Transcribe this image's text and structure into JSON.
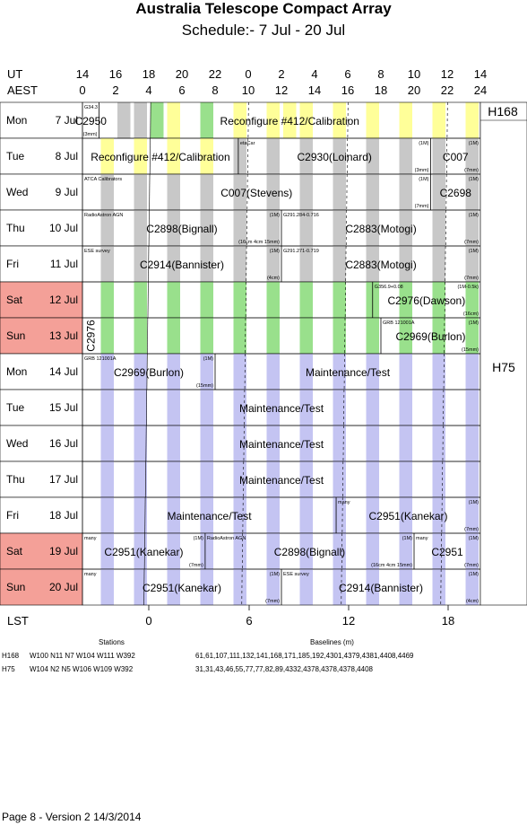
{
  "title": "Australia Telescope Compact Array",
  "subtitle": "Schedule:- 7  Jul - 20 Jul",
  "axis": {
    "ut_label": "UT",
    "aest_label": "AEST",
    "lst_label": "LST",
    "ut_ticks": [
      "14",
      "16",
      "18",
      "20",
      "22",
      "0",
      "2",
      "4",
      "6",
      "8",
      "10",
      "12",
      "14"
    ],
    "aest_ticks": [
      "0",
      "2",
      "4",
      "6",
      "8",
      "10",
      "12",
      "14",
      "16",
      "18",
      "20",
      "22",
      "24"
    ],
    "lst_ticks": [
      "0",
      "6",
      "12",
      "18"
    ]
  },
  "days": [
    {
      "dow": "Mon",
      "date": "7  Jul",
      "weekend": false
    },
    {
      "dow": "Tue",
      "date": "8  Jul",
      "weekend": false
    },
    {
      "dow": "Wed",
      "date": "9  Jul",
      "weekend": false
    },
    {
      "dow": "Thu",
      "date": "10 Jul",
      "weekend": false
    },
    {
      "dow": "Fri",
      "date": "11 Jul",
      "weekend": false
    },
    {
      "dow": "Sat",
      "date": "12 Jul",
      "weekend": true
    },
    {
      "dow": "Sun",
      "date": "13 Jul",
      "weekend": true
    },
    {
      "dow": "Mon",
      "date": "14 Jul",
      "weekend": false
    },
    {
      "dow": "Tue",
      "date": "15 Jul",
      "weekend": false
    },
    {
      "dow": "Wed",
      "date": "16 Jul",
      "weekend": false
    },
    {
      "dow": "Thu",
      "date": "17 Jul",
      "weekend": false
    },
    {
      "dow": "Fri",
      "date": "18 Jul",
      "weekend": false
    },
    {
      "dow": "Sat",
      "date": "19 Jul",
      "weekend": true
    },
    {
      "dow": "Sun",
      "date": "20 Jul",
      "weekend": true
    }
  ],
  "configs": {
    "first": "H168",
    "second": "H75"
  },
  "blocks": [
    {
      "row": 0,
      "start": 0,
      "end": 1,
      "name": "C2950",
      "tl": "G34.3",
      "br": "(3mm)"
    },
    {
      "row": 0,
      "start": 1,
      "end": 24,
      "name": "Reconfigure #412/Calibration"
    },
    {
      "row": 1,
      "start": 0,
      "end": 9.4,
      "name": "Reconfigure #412/Calibration"
    },
    {
      "row": 1,
      "start": 9.4,
      "end": 21,
      "name": "C2930(Loinard)",
      "tl": "etaCar",
      "tr": "(1M)",
      "br": "(3mm)"
    },
    {
      "row": 1,
      "start": 21,
      "end": 24,
      "name": "C007",
      "tr": "(1M)",
      "br": "(7mm)"
    },
    {
      "row": 2,
      "start": 0,
      "end": 21,
      "name": "C007(Stevens)",
      "tl": "ATCA Calibrators",
      "tr": "(1M)",
      "br": "(7mm)"
    },
    {
      "row": 2,
      "start": 21,
      "end": 24,
      "name": "C2698",
      "tr": "(1M)"
    },
    {
      "row": 3,
      "start": 0,
      "end": 12,
      "name": "C2898(Bignall)",
      "tl": "RadioAstron AGN",
      "tr": "(1M)",
      "br": "(16cm 4cm 15mm)"
    },
    {
      "row": 3,
      "start": 12,
      "end": 24,
      "name": "C2883(Motogi)",
      "tl": "G291.284-0.716",
      "tr": "(1M)",
      "br": "(7mm)"
    },
    {
      "row": 4,
      "start": 0,
      "end": 12,
      "name": "C2914(Bannister)",
      "tl": "ESE survey",
      "tr": "(1M)",
      "br": "(4cm)"
    },
    {
      "row": 4,
      "start": 12,
      "end": 24,
      "name": "C2883(Motogi)",
      "tl": "G291.271-0.719",
      "tr": "(1M)",
      "br": "(7mm)"
    },
    {
      "row": 5,
      "start": 17.5,
      "end": 24,
      "name": "C2976(Dawson)",
      "tl": "G356.9+0.08",
      "tr": "(1M-0.5k)",
      "br": "(16cm)"
    },
    {
      "row": 6,
      "start": 0,
      "end": 1,
      "name": "C2976",
      "vertical": true
    },
    {
      "row": 6,
      "start": 18,
      "end": 24,
      "name": "C2969(Burlon)",
      "tl": "GRB 121001A",
      "tr": "(1M)",
      "br": "(15mm)"
    },
    {
      "row": 7,
      "start": 0,
      "end": 8,
      "name": "C2969(Burlon)",
      "tl": "GRB 121001A",
      "tr": "(1M)",
      "br": "(15mm)"
    },
    {
      "row": 7,
      "start": 8,
      "end": 24,
      "name": "Maintenance/Test"
    },
    {
      "row": 8,
      "start": 0,
      "end": 24,
      "name": "Maintenance/Test"
    },
    {
      "row": 9,
      "start": 0,
      "end": 24,
      "name": "Maintenance/Test"
    },
    {
      "row": 10,
      "start": 0,
      "end": 24,
      "name": "Maintenance/Test"
    },
    {
      "row": 11,
      "start": 0,
      "end": 15.3,
      "name": "Maintenance/Test"
    },
    {
      "row": 11,
      "start": 15.3,
      "end": 24,
      "name": "C2951(Kanekar)",
      "tl": "many",
      "tr": "(1M)",
      "br": "(7mm)"
    },
    {
      "row": 12,
      "start": 0,
      "end": 7.4,
      "name": "C2951(Kanekar)",
      "tl": "many",
      "tr": "(1M)",
      "br": "(7mm)"
    },
    {
      "row": 12,
      "start": 7.4,
      "end": 20,
      "name": "C2898(Bignall)",
      "tl": "RadioAstron AGN",
      "tr": "(1M)",
      "br": "(16cm 4cm 15mm)"
    },
    {
      "row": 12,
      "start": 20,
      "end": 24,
      "name": "C2951",
      "tl": "many",
      "tr": "(1M)",
      "br": "(7mm)"
    },
    {
      "row": 13,
      "start": 0,
      "end": 12,
      "name": "C2951(Kanekar)",
      "tl": "many",
      "tr": "(1M)",
      "br": "(7mm)"
    },
    {
      "row": 13,
      "start": 12,
      "end": 24,
      "name": "C2914(Bannister)",
      "tl": "ESE survey",
      "tr": "(1M)",
      "br": "(4cm)"
    }
  ],
  "stations": {
    "stations_header": "Stations",
    "baselines_header": "Baselines (m)",
    "rows": [
      {
        "config": "H168",
        "stations": "W100  N11  N7  W104  W111  W392",
        "baselines": "61,61,107,111,132,141,168,171,185,192,4301,4379,4381,4408,4469"
      },
      {
        "config": "H75",
        "stations": "W104  N2  N5  W106  W109  W392",
        "baselines": "31,31,43,46,55,77,77,82,89,4332,4378,4378,4378,4408"
      }
    ]
  },
  "footer": "Page 8 - Version 2  14/3/2014",
  "colors": {
    "weekend": "#f4a098",
    "gray": "#c8c8c8",
    "yellow": "#ffff99",
    "green": "#99e08c",
    "lavender": "#c4c4f2"
  }
}
